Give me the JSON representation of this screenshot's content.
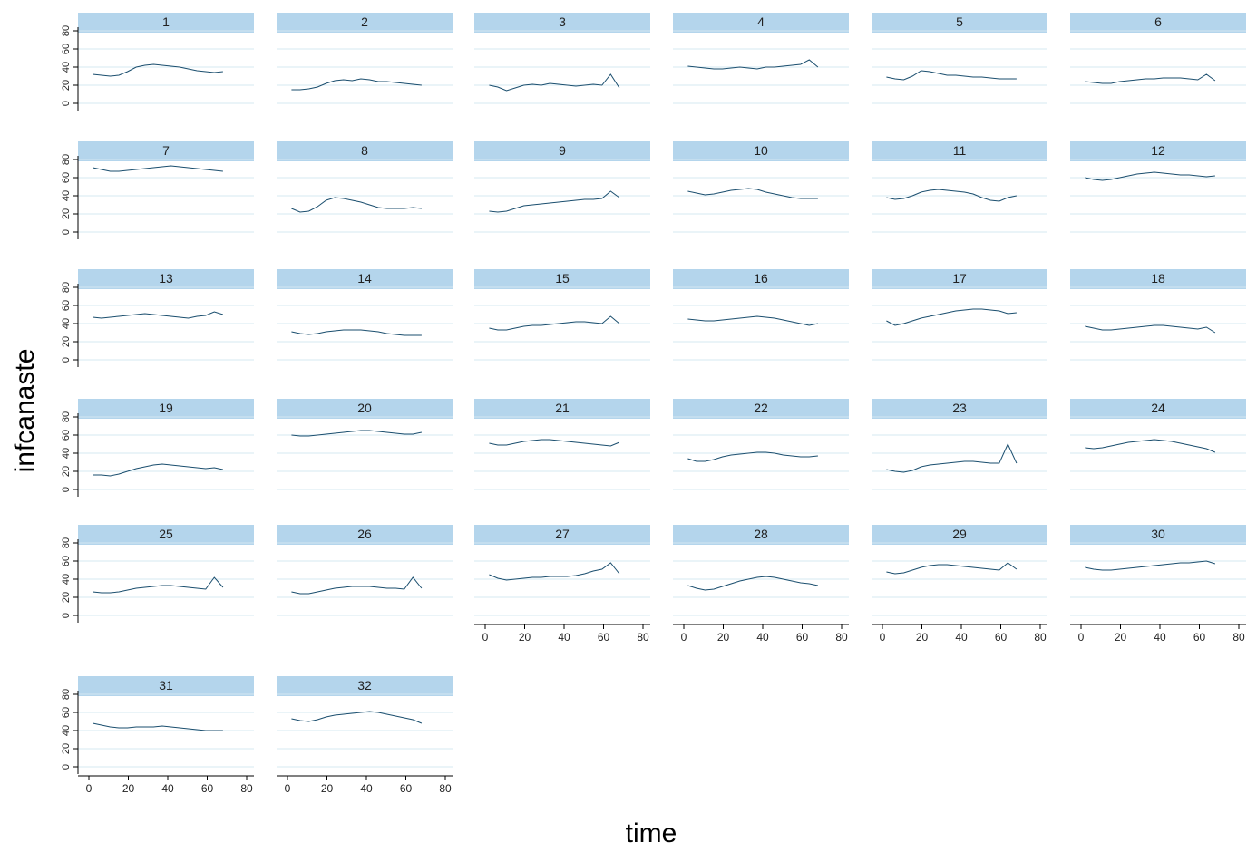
{
  "chart_data": {
    "type": "line",
    "ylabel": "infcanaste",
    "xlabel": "time",
    "xlim": [
      0,
      80
    ],
    "ylim": [
      0,
      80
    ],
    "xticks": [
      0,
      20,
      40,
      60,
      80
    ],
    "yticks": [
      0,
      20,
      40,
      60,
      80
    ],
    "grid": true,
    "colors": {
      "strip": "#b4d5ec",
      "line": "#1a4e6e",
      "grid": "#d4e8f2",
      "axis": "#000000"
    },
    "x_start": 2,
    "x_step": 2,
    "panels": [
      {
        "label": "1",
        "values": [
          32,
          31,
          30,
          31,
          35,
          40,
          42,
          43,
          42,
          41,
          40,
          38,
          36,
          35,
          34,
          35
        ]
      },
      {
        "label": "2",
        "values": [
          15,
          15,
          16,
          18,
          22,
          25,
          26,
          25,
          27,
          26,
          24,
          24,
          23,
          22,
          21,
          20
        ]
      },
      {
        "label": "3",
        "values": [
          20,
          18,
          14,
          17,
          20,
          21,
          20,
          22,
          21,
          20,
          19,
          20,
          21,
          20,
          32,
          17
        ]
      },
      {
        "label": "4",
        "values": [
          41,
          40,
          39,
          38,
          38,
          39,
          40,
          39,
          38,
          40,
          40,
          41,
          42,
          43,
          48,
          40
        ]
      },
      {
        "label": "5",
        "values": [
          29,
          27,
          26,
          30,
          36,
          35,
          33,
          31,
          31,
          30,
          29,
          29,
          28,
          27,
          27,
          27
        ]
      },
      {
        "label": "6",
        "values": [
          24,
          23,
          22,
          22,
          24,
          25,
          26,
          27,
          27,
          28,
          28,
          28,
          27,
          26,
          32,
          25
        ]
      },
      {
        "label": "7",
        "values": [
          71,
          69,
          67,
          67,
          68,
          69,
          70,
          71,
          72,
          73,
          72,
          71,
          70,
          69,
          68,
          67
        ]
      },
      {
        "label": "8",
        "values": [
          26,
          22,
          23,
          28,
          35,
          38,
          37,
          35,
          33,
          30,
          27,
          26,
          26,
          26,
          27,
          26
        ]
      },
      {
        "label": "9",
        "values": [
          23,
          22,
          23,
          26,
          29,
          30,
          31,
          32,
          33,
          34,
          35,
          36,
          36,
          37,
          45,
          38
        ]
      },
      {
        "label": "10",
        "values": [
          45,
          43,
          41,
          42,
          44,
          46,
          47,
          48,
          47,
          44,
          42,
          40,
          38,
          37,
          37,
          37
        ]
      },
      {
        "label": "11",
        "values": [
          38,
          36,
          37,
          40,
          44,
          46,
          47,
          46,
          45,
          44,
          42,
          38,
          35,
          34,
          38,
          40
        ]
      },
      {
        "label": "12",
        "values": [
          60,
          58,
          57,
          58,
          60,
          62,
          64,
          65,
          66,
          65,
          64,
          63,
          63,
          62,
          61,
          62
        ]
      },
      {
        "label": "13",
        "values": [
          47,
          46,
          47,
          48,
          49,
          50,
          51,
          50,
          49,
          48,
          47,
          46,
          48,
          49,
          53,
          50
        ]
      },
      {
        "label": "14",
        "values": [
          31,
          29,
          28,
          29,
          31,
          32,
          33,
          33,
          33,
          32,
          31,
          29,
          28,
          27,
          27,
          27
        ]
      },
      {
        "label": "15",
        "values": [
          35,
          33,
          33,
          35,
          37,
          38,
          38,
          39,
          40,
          41,
          42,
          42,
          41,
          40,
          48,
          40
        ]
      },
      {
        "label": "16",
        "values": [
          45,
          44,
          43,
          43,
          44,
          45,
          46,
          47,
          48,
          47,
          46,
          44,
          42,
          40,
          38,
          40
        ]
      },
      {
        "label": "17",
        "values": [
          43,
          38,
          40,
          43,
          46,
          48,
          50,
          52,
          54,
          55,
          56,
          56,
          55,
          54,
          51,
          52
        ]
      },
      {
        "label": "18",
        "values": [
          37,
          35,
          33,
          33,
          34,
          35,
          36,
          37,
          38,
          38,
          37,
          36,
          35,
          34,
          36,
          30
        ]
      },
      {
        "label": "19",
        "values": [
          16,
          16,
          15,
          17,
          20,
          23,
          25,
          27,
          28,
          27,
          26,
          25,
          24,
          23,
          24,
          22
        ]
      },
      {
        "label": "20",
        "values": [
          60,
          59,
          59,
          60,
          61,
          62,
          63,
          64,
          65,
          65,
          64,
          63,
          62,
          61,
          61,
          63
        ]
      },
      {
        "label": "21",
        "values": [
          51,
          49,
          49,
          51,
          53,
          54,
          55,
          55,
          54,
          53,
          52,
          51,
          50,
          49,
          48,
          52
        ]
      },
      {
        "label": "22",
        "values": [
          34,
          31,
          31,
          33,
          36,
          38,
          39,
          40,
          41,
          41,
          40,
          38,
          37,
          36,
          36,
          37
        ]
      },
      {
        "label": "23",
        "values": [
          22,
          20,
          19,
          21,
          25,
          27,
          28,
          29,
          30,
          31,
          31,
          30,
          29,
          29,
          50,
          29
        ]
      },
      {
        "label": "24",
        "values": [
          46,
          45,
          46,
          48,
          50,
          52,
          53,
          54,
          55,
          54,
          53,
          51,
          49,
          47,
          45,
          41
        ]
      },
      {
        "label": "25",
        "values": [
          26,
          25,
          25,
          26,
          28,
          30,
          31,
          32,
          33,
          33,
          32,
          31,
          30,
          29,
          42,
          31
        ]
      },
      {
        "label": "26",
        "values": [
          26,
          24,
          24,
          26,
          28,
          30,
          31,
          32,
          32,
          32,
          31,
          30,
          30,
          29,
          42,
          30
        ]
      },
      {
        "label": "27",
        "values": [
          45,
          41,
          39,
          40,
          41,
          42,
          42,
          43,
          43,
          43,
          44,
          46,
          49,
          51,
          58,
          46
        ]
      },
      {
        "label": "28",
        "values": [
          33,
          30,
          28,
          29,
          32,
          35,
          38,
          40,
          42,
          43,
          42,
          40,
          38,
          36,
          35,
          33
        ]
      },
      {
        "label": "29",
        "values": [
          48,
          46,
          47,
          50,
          53,
          55,
          56,
          56,
          55,
          54,
          53,
          52,
          51,
          50,
          58,
          51
        ]
      },
      {
        "label": "30",
        "values": [
          53,
          51,
          50,
          50,
          51,
          52,
          53,
          54,
          55,
          56,
          57,
          58,
          58,
          59,
          60,
          57
        ]
      },
      {
        "label": "31",
        "values": [
          48,
          46,
          44,
          43,
          43,
          44,
          44,
          44,
          45,
          44,
          43,
          42,
          41,
          40,
          40,
          40
        ]
      },
      {
        "label": "32",
        "values": [
          53,
          51,
          50,
          52,
          55,
          57,
          58,
          59,
          60,
          61,
          60,
          58,
          56,
          54,
          52,
          48
        ]
      }
    ]
  }
}
